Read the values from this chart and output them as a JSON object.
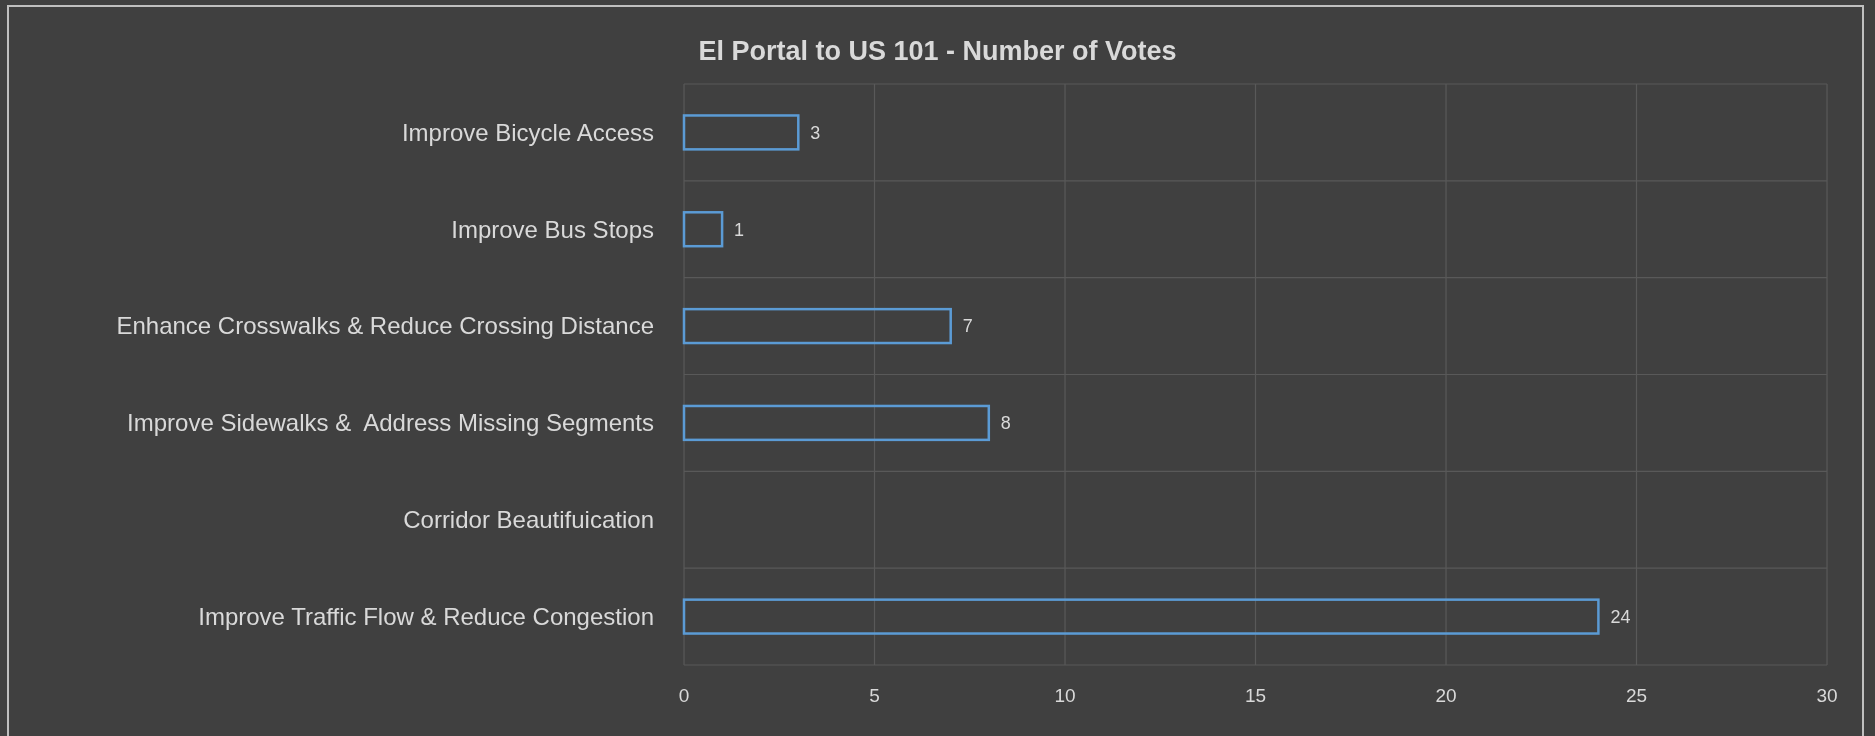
{
  "chart_data": {
    "type": "bar",
    "orientation": "horizontal",
    "title": "El Portal to US 101 - Number of Votes",
    "categories": [
      "Improve Bicycle Access",
      "Improve Bus Stops",
      "Enhance Crosswalks & Reduce Crossing Distance",
      "Improve Sidewalks &  Address Missing Segments",
      "Corridor Beautifuication",
      "Improve Traffic Flow & Reduce Congestion"
    ],
    "values": [
      3,
      1,
      7,
      8,
      null,
      24
    ],
    "color": "#5b9bd5",
    "xlim": [
      0,
      30
    ],
    "xticks": [
      0,
      5,
      10,
      15,
      20,
      25,
      30
    ],
    "grid": true,
    "data_labels": true
  }
}
